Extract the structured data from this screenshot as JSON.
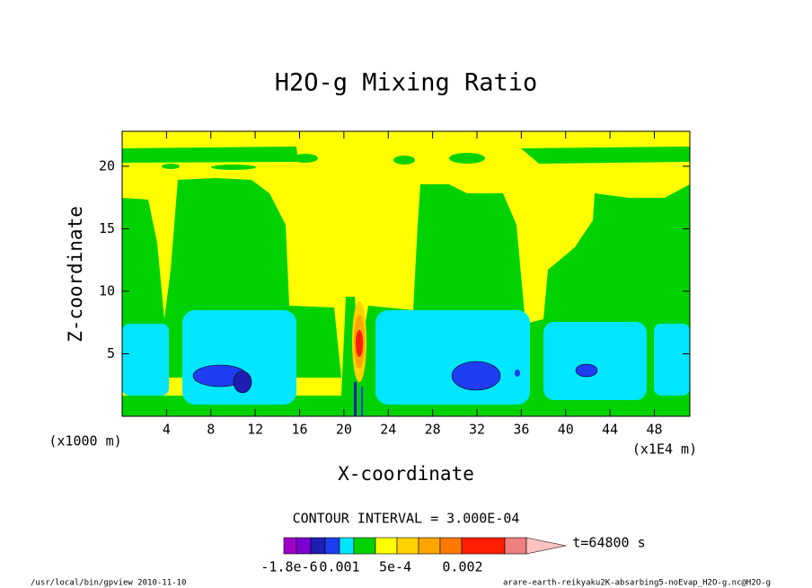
{
  "chart_data": {
    "type": "contour",
    "title": "H2O-g Mixing Ratio",
    "x_label": "X-coordinate",
    "y_label": "Z-coordinate",
    "x_unit_left": "(x1000 m)",
    "x_unit_right": "(x1E4 m)",
    "xlim": [
      0,
      51.2
    ],
    "ylim": [
      0,
      22.8
    ],
    "xticks": [
      4,
      8,
      12,
      16,
      20,
      24,
      28,
      32,
      36,
      40,
      44,
      48
    ],
    "yticks": [
      5,
      10,
      15,
      20
    ],
    "contour_interval_text": "CONTOUR INTERVAL = 3.000E-04",
    "time_text": "t=64800 s",
    "colorbar_colors": [
      "#a000c8",
      "#7a00d2",
      "#1e1eb4",
      "#1e3cf0",
      "#00e6ff",
      "#00d200",
      "#ffff00",
      "#ffd200",
      "#ffa500",
      "#ff7800",
      "#ff1e00",
      "#f08080",
      "#ffc0c0"
    ],
    "colorbar_labels": [
      "-1.8e-6",
      "0.001",
      "5e-4",
      "0.002"
    ],
    "footer_left": "/usr/local/bin/gpview  2010-11-10",
    "footer_right": "arare-earth-reikyaku2K-absarbing5-noEvap_H2O-g.nc@H2O-g"
  }
}
